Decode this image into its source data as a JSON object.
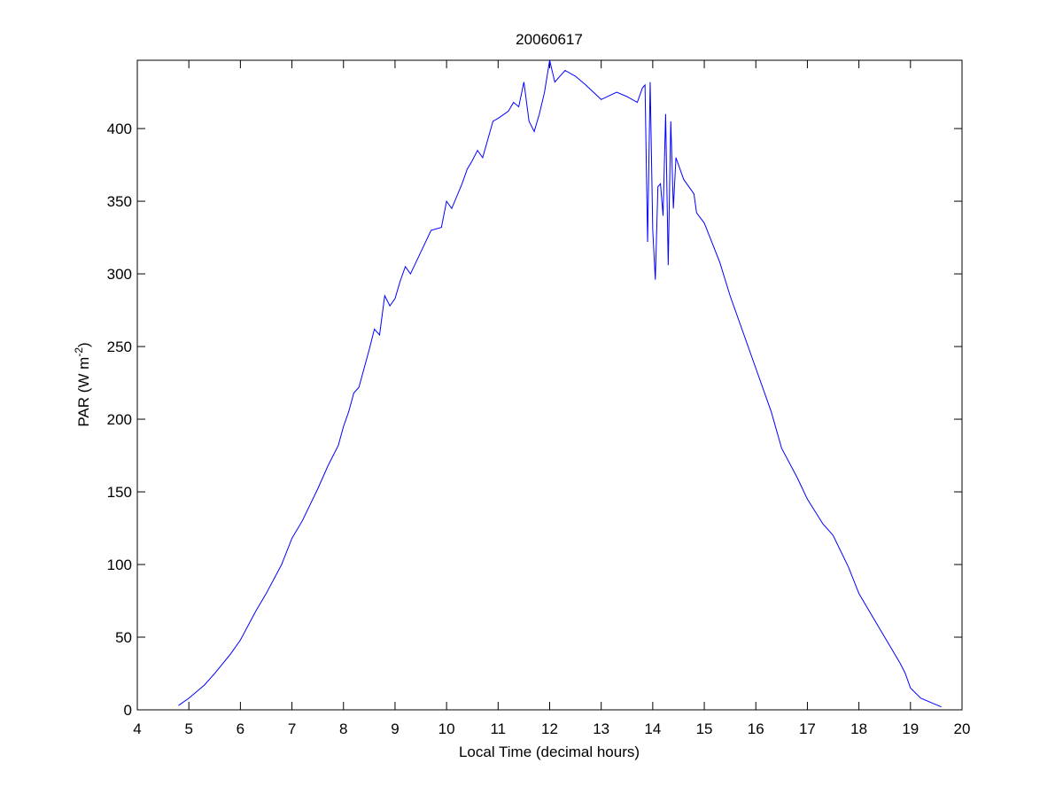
{
  "chart_data": {
    "type": "line",
    "title": "20060617",
    "xlabel": "Local Time (decimal hours)",
    "ylabel": [
      "PAR (W m",
      "-2",
      ")"
    ],
    "x": [
      4.8,
      5.0,
      5.3,
      5.5,
      5.8,
      6.0,
      6.3,
      6.5,
      6.8,
      7.0,
      7.2,
      7.5,
      7.7,
      7.9,
      8.0,
      8.1,
      8.2,
      8.3,
      8.5,
      8.6,
      8.7,
      8.8,
      8.9,
      9.0,
      9.1,
      9.2,
      9.3,
      9.5,
      9.7,
      9.9,
      10.0,
      10.1,
      10.3,
      10.4,
      10.5,
      10.6,
      10.7,
      10.9,
      11.0,
      11.2,
      11.3,
      11.4,
      11.5,
      11.6,
      11.7,
      11.8,
      11.9,
      12.0,
      12.1,
      12.3,
      12.5,
      12.7,
      13.0,
      13.3,
      13.5,
      13.7,
      13.8,
      13.85,
      13.9,
      13.95,
      14.0,
      14.05,
      14.1,
      14.15,
      14.2,
      14.25,
      14.3,
      14.35,
      14.4,
      14.45,
      14.6,
      14.8,
      14.85,
      15.0,
      15.3,
      15.5,
      15.8,
      16.0,
      16.3,
      16.5,
      16.8,
      17.0,
      17.3,
      17.5,
      17.8,
      18.0,
      18.3,
      18.5,
      18.8,
      18.9,
      19.0,
      19.2,
      19.4,
      19.6
    ],
    "series": [
      {
        "color": "#0000ff",
        "values": [
          3,
          8,
          17,
          25,
          38,
          48,
          68,
          80,
          100,
          118,
          130,
          152,
          168,
          182,
          195,
          205,
          218,
          222,
          248,
          262,
          258,
          285,
          278,
          283,
          295,
          305,
          300,
          315,
          330,
          332,
          350,
          345,
          362,
          372,
          378,
          385,
          380,
          405,
          407,
          412,
          418,
          415,
          432,
          405,
          398,
          410,
          425,
          447,
          432,
          440,
          436,
          430,
          420,
          425,
          422,
          418,
          428,
          430,
          322,
          432,
          330,
          296,
          360,
          362,
          340,
          410,
          306,
          405,
          345,
          380,
          365,
          355,
          342,
          335,
          308,
          285,
          255,
          235,
          205,
          180,
          160,
          145,
          128,
          120,
          98,
          80,
          62,
          50,
          32,
          25,
          15,
          8,
          5,
          2
        ]
      }
    ],
    "xlim": [
      4,
      20
    ],
    "xticks": [
      4,
      5,
      6,
      7,
      8,
      9,
      10,
      11,
      12,
      13,
      14,
      15,
      16,
      17,
      18,
      19,
      20
    ],
    "ylim": [
      0,
      447
    ],
    "yticks": [
      0,
      50,
      100,
      150,
      200,
      250,
      300,
      350,
      400
    ]
  }
}
